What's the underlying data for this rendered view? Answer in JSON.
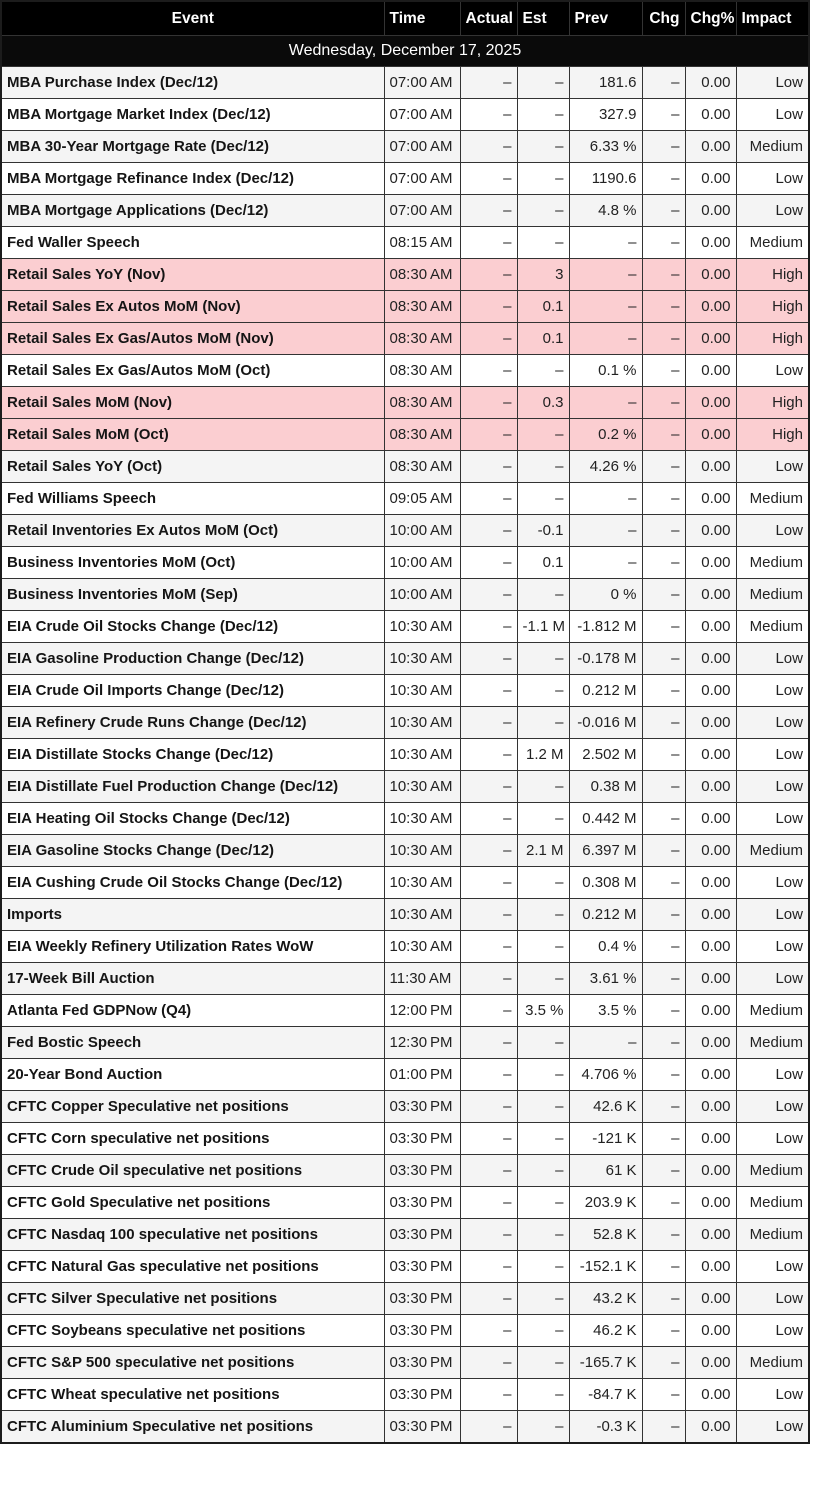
{
  "table": {
    "columns": [
      "Event",
      "Time",
      "Actual",
      "Est",
      "Prev",
      "Chg",
      "Chg%",
      "Impact"
    ],
    "date_header": "Wednesday, December 17, 2025",
    "empty_value": "–",
    "colors": {
      "header_bg": "#000000",
      "header_text": "#ffffff",
      "date_row_bg": "#0a0a0a",
      "alt_row_bg": "#f4f4f4",
      "row_bg": "#ffffff",
      "high_impact_row_bg": "#fbced1",
      "border": "#333333",
      "text": "#222222"
    },
    "rows": [
      {
        "event": "MBA Purchase Index (Dec/12)",
        "time": "07:00 AM",
        "actual": "–",
        "est": "–",
        "prev": "181.6",
        "chg": "–",
        "chg_pct": "0.00",
        "impact": "Low"
      },
      {
        "event": "MBA Mortgage Market Index (Dec/12)",
        "time": "07:00 AM",
        "actual": "–",
        "est": "–",
        "prev": "327.9",
        "chg": "–",
        "chg_pct": "0.00",
        "impact": "Low"
      },
      {
        "event": "MBA 30-Year Mortgage Rate (Dec/12)",
        "time": "07:00 AM",
        "actual": "–",
        "est": "–",
        "prev": "6.33 %",
        "chg": "–",
        "chg_pct": "0.00",
        "impact": "Medium"
      },
      {
        "event": "MBA Mortgage Refinance Index (Dec/12)",
        "time": "07:00 AM",
        "actual": "–",
        "est": "–",
        "prev": "1190.6",
        "chg": "–",
        "chg_pct": "0.00",
        "impact": "Low"
      },
      {
        "event": "MBA Mortgage Applications (Dec/12)",
        "time": "07:00 AM",
        "actual": "–",
        "est": "–",
        "prev": "4.8 %",
        "chg": "–",
        "chg_pct": "0.00",
        "impact": "Low"
      },
      {
        "event": "Fed Waller Speech",
        "time": "08:15 AM",
        "actual": "–",
        "est": "–",
        "prev": "–",
        "chg": "–",
        "chg_pct": "0.00",
        "impact": "Medium"
      },
      {
        "event": "Retail Sales YoY (Nov)",
        "time": "08:30 AM",
        "actual": "–",
        "est": "3",
        "prev": "–",
        "chg": "–",
        "chg_pct": "0.00",
        "impact": "High"
      },
      {
        "event": "Retail Sales Ex Autos MoM (Nov)",
        "time": "08:30 AM",
        "actual": "–",
        "est": "0.1",
        "prev": "–",
        "chg": "–",
        "chg_pct": "0.00",
        "impact": "High"
      },
      {
        "event": "Retail Sales Ex Gas/Autos MoM (Nov)",
        "time": "08:30 AM",
        "actual": "–",
        "est": "0.1",
        "prev": "–",
        "chg": "–",
        "chg_pct": "0.00",
        "impact": "High"
      },
      {
        "event": "Retail Sales Ex Gas/Autos MoM (Oct)",
        "time": "08:30 AM",
        "actual": "–",
        "est": "–",
        "prev": "0.1 %",
        "chg": "–",
        "chg_pct": "0.00",
        "impact": "Low"
      },
      {
        "event": "Retail Sales MoM (Nov)",
        "time": "08:30 AM",
        "actual": "–",
        "est": "0.3",
        "prev": "–",
        "chg": "–",
        "chg_pct": "0.00",
        "impact": "High"
      },
      {
        "event": "Retail Sales MoM (Oct)",
        "time": "08:30 AM",
        "actual": "–",
        "est": "–",
        "prev": "0.2 %",
        "chg": "–",
        "chg_pct": "0.00",
        "impact": "High"
      },
      {
        "event": "Retail Sales YoY (Oct)",
        "time": "08:30 AM",
        "actual": "–",
        "est": "–",
        "prev": "4.26 %",
        "chg": "–",
        "chg_pct": "0.00",
        "impact": "Low"
      },
      {
        "event": "Fed Williams Speech",
        "time": "09:05 AM",
        "actual": "–",
        "est": "–",
        "prev": "–",
        "chg": "–",
        "chg_pct": "0.00",
        "impact": "Medium"
      },
      {
        "event": "Retail Inventories Ex Autos MoM (Oct)",
        "time": "10:00 AM",
        "actual": "–",
        "est": "-0.1",
        "prev": "–",
        "chg": "–",
        "chg_pct": "0.00",
        "impact": "Low"
      },
      {
        "event": "Business Inventories MoM (Oct)",
        "time": "10:00 AM",
        "actual": "–",
        "est": "0.1",
        "prev": "–",
        "chg": "–",
        "chg_pct": "0.00",
        "impact": "Medium"
      },
      {
        "event": "Business Inventories MoM (Sep)",
        "time": "10:00 AM",
        "actual": "–",
        "est": "–",
        "prev": "0 %",
        "chg": "–",
        "chg_pct": "0.00",
        "impact": "Medium"
      },
      {
        "event": "EIA Crude Oil Stocks Change (Dec/12)",
        "time": "10:30 AM",
        "actual": "–",
        "est": "-1.1 M",
        "prev": "-1.812 M",
        "chg": "–",
        "chg_pct": "0.00",
        "impact": "Medium"
      },
      {
        "event": "EIA Gasoline Production Change (Dec/12)",
        "time": "10:30 AM",
        "actual": "–",
        "est": "–",
        "prev": "-0.178 M",
        "chg": "–",
        "chg_pct": "0.00",
        "impact": "Low"
      },
      {
        "event": "EIA Crude Oil Imports Change (Dec/12)",
        "time": "10:30 AM",
        "actual": "–",
        "est": "–",
        "prev": "0.212 M",
        "chg": "–",
        "chg_pct": "0.00",
        "impact": "Low"
      },
      {
        "event": "EIA Refinery Crude Runs Change (Dec/12)",
        "time": "10:30 AM",
        "actual": "–",
        "est": "–",
        "prev": "-0.016 M",
        "chg": "–",
        "chg_pct": "0.00",
        "impact": "Low"
      },
      {
        "event": "EIA Distillate Stocks Change (Dec/12)",
        "time": "10:30 AM",
        "actual": "–",
        "est": "1.2 M",
        "prev": "2.502 M",
        "chg": "–",
        "chg_pct": "0.00",
        "impact": "Low"
      },
      {
        "event": "EIA Distillate Fuel Production Change (Dec/12)",
        "time": "10:30 AM",
        "actual": "–",
        "est": "–",
        "prev": "0.38 M",
        "chg": "–",
        "chg_pct": "0.00",
        "impact": "Low"
      },
      {
        "event": "EIA Heating Oil Stocks Change (Dec/12)",
        "time": "10:30 AM",
        "actual": "–",
        "est": "–",
        "prev": "0.442 M",
        "chg": "–",
        "chg_pct": "0.00",
        "impact": "Low"
      },
      {
        "event": "EIA Gasoline Stocks Change (Dec/12)",
        "time": "10:30 AM",
        "actual": "–",
        "est": "2.1 M",
        "prev": "6.397 M",
        "chg": "–",
        "chg_pct": "0.00",
        "impact": "Medium"
      },
      {
        "event": "EIA Cushing Crude Oil Stocks Change (Dec/12)",
        "time": "10:30 AM",
        "actual": "–",
        "est": "–",
        "prev": "0.308 M",
        "chg": "–",
        "chg_pct": "0.00",
        "impact": "Low"
      },
      {
        "event": "Imports",
        "time": "10:30 AM",
        "actual": "–",
        "est": "–",
        "prev": "0.212 M",
        "chg": "–",
        "chg_pct": "0.00",
        "impact": "Low"
      },
      {
        "event": "EIA Weekly Refinery Utilization Rates WoW",
        "time": "10:30 AM",
        "actual": "–",
        "est": "–",
        "prev": "0.4 %",
        "chg": "–",
        "chg_pct": "0.00",
        "impact": "Low"
      },
      {
        "event": "17-Week Bill Auction",
        "time": "11:30 AM",
        "actual": "–",
        "est": "–",
        "prev": "3.61 %",
        "chg": "–",
        "chg_pct": "0.00",
        "impact": "Low"
      },
      {
        "event": "Atlanta Fed GDPNow (Q4)",
        "time": "12:00 PM",
        "actual": "–",
        "est": "3.5 %",
        "prev": "3.5 %",
        "chg": "–",
        "chg_pct": "0.00",
        "impact": "Medium"
      },
      {
        "event": "Fed Bostic Speech",
        "time": "12:30 PM",
        "actual": "–",
        "est": "–",
        "prev": "–",
        "chg": "–",
        "chg_pct": "0.00",
        "impact": "Medium"
      },
      {
        "event": "20-Year Bond Auction",
        "time": "01:00 PM",
        "actual": "–",
        "est": "–",
        "prev": "4.706 %",
        "chg": "–",
        "chg_pct": "0.00",
        "impact": "Low"
      },
      {
        "event": "CFTC Copper Speculative net positions",
        "time": "03:30 PM",
        "actual": "–",
        "est": "–",
        "prev": "42.6 K",
        "chg": "–",
        "chg_pct": "0.00",
        "impact": "Low"
      },
      {
        "event": "CFTC Corn speculative net positions",
        "time": "03:30 PM",
        "actual": "–",
        "est": "–",
        "prev": "-121 K",
        "chg": "–",
        "chg_pct": "0.00",
        "impact": "Low"
      },
      {
        "event": "CFTC Crude Oil speculative net positions",
        "time": "03:30 PM",
        "actual": "–",
        "est": "–",
        "prev": "61 K",
        "chg": "–",
        "chg_pct": "0.00",
        "impact": "Medium"
      },
      {
        "event": "CFTC Gold Speculative net positions",
        "time": "03:30 PM",
        "actual": "–",
        "est": "–",
        "prev": "203.9 K",
        "chg": "–",
        "chg_pct": "0.00",
        "impact": "Medium"
      },
      {
        "event": "CFTC Nasdaq 100 speculative net positions",
        "time": "03:30 PM",
        "actual": "–",
        "est": "–",
        "prev": "52.8 K",
        "chg": "–",
        "chg_pct": "0.00",
        "impact": "Medium"
      },
      {
        "event": "CFTC Natural Gas speculative net positions",
        "time": "03:30 PM",
        "actual": "–",
        "est": "–",
        "prev": "-152.1 K",
        "chg": "–",
        "chg_pct": "0.00",
        "impact": "Low"
      },
      {
        "event": "CFTC Silver Speculative net positions",
        "time": "03:30 PM",
        "actual": "–",
        "est": "–",
        "prev": "43.2 K",
        "chg": "–",
        "chg_pct": "0.00",
        "impact": "Low"
      },
      {
        "event": "CFTC Soybeans speculative net positions",
        "time": "03:30 PM",
        "actual": "–",
        "est": "–",
        "prev": "46.2 K",
        "chg": "–",
        "chg_pct": "0.00",
        "impact": "Low"
      },
      {
        "event": "CFTC S&P 500 speculative net positions",
        "time": "03:30 PM",
        "actual": "–",
        "est": "–",
        "prev": "-165.7 K",
        "chg": "–",
        "chg_pct": "0.00",
        "impact": "Medium"
      },
      {
        "event": "CFTC Wheat speculative net positions",
        "time": "03:30 PM",
        "actual": "–",
        "est": "–",
        "prev": "-84.7 K",
        "chg": "–",
        "chg_pct": "0.00",
        "impact": "Low"
      },
      {
        "event": "CFTC Aluminium Speculative net positions",
        "time": "03:30 PM",
        "actual": "–",
        "est": "–",
        "prev": "-0.3 K",
        "chg": "–",
        "chg_pct": "0.00",
        "impact": "Low"
      }
    ]
  }
}
